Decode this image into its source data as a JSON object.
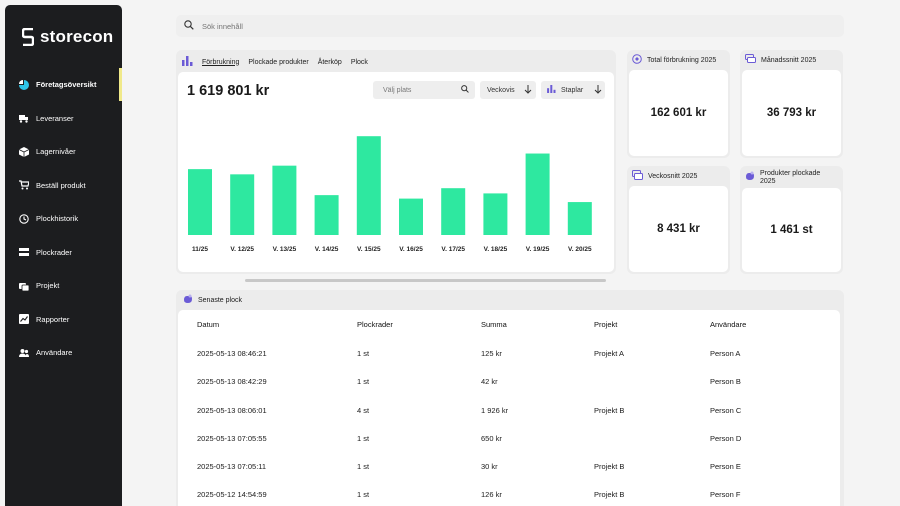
{
  "app": {
    "name": "storecon"
  },
  "sidebar": {
    "items": [
      {
        "label": "Företagsöversikt",
        "icon": "pie-chart-icon",
        "active": true
      },
      {
        "label": "Leveranser",
        "icon": "delivery-icon"
      },
      {
        "label": "Lagernivåer",
        "icon": "box-icon"
      },
      {
        "label": "Beställ produkt",
        "icon": "cart-icon"
      },
      {
        "label": "Plockhistorik",
        "icon": "history-icon"
      },
      {
        "label": "Plockrader",
        "icon": "rows-icon"
      },
      {
        "label": "Projekt",
        "icon": "project-icon"
      },
      {
        "label": "Rapporter",
        "icon": "report-icon"
      },
      {
        "label": "Användare",
        "icon": "users-icon"
      }
    ]
  },
  "search": {
    "placeholder": "Sök innehåll"
  },
  "chart_panel": {
    "tabs": [
      "Förbrukning",
      "Plockade produkter",
      "Återköp",
      "Plock"
    ],
    "total": "1 619 801 kr",
    "place_placeholder": "Välj plats",
    "period_label": "Veckovis",
    "view_label": "Staplar"
  },
  "chart_data": {
    "type": "bar",
    "categories": [
      "11/25",
      "V. 12/25",
      "V. 13/25",
      "V. 14/25",
      "V. 15/25",
      "V. 16/25",
      "V. 17/25",
      "V. 18/25",
      "V. 19/25",
      "V. 20/25"
    ],
    "values": [
      38,
      35,
      40,
      23,
      57,
      21,
      27,
      24,
      47,
      19
    ],
    "ylim": [
      0,
      60
    ],
    "grid": false,
    "color": "#2ee8a0"
  },
  "stats": [
    {
      "title": "Total förbrukning 2025",
      "value": "162 601 kr",
      "icon": "coins-icon"
    },
    {
      "title": "Månadssnitt 2025",
      "value": "36 793 kr",
      "icon": "money-stack-icon"
    },
    {
      "title": "Veckosnitt 2025",
      "value": "8 431 kr",
      "icon": "calendar-money-icon"
    },
    {
      "title": "Produkter plockade 2025",
      "value": "1 461 st",
      "icon": "hand-pick-icon"
    }
  ],
  "recent": {
    "title": "Senaste plock",
    "columns": [
      "Datum",
      "Plockrader",
      "Summa",
      "Projekt",
      "Användare"
    ],
    "rows": [
      [
        "2025-05-13 08:46:21",
        "1 st",
        "125 kr",
        "Projekt A",
        "Person A"
      ],
      [
        "2025-05-13 08:42:29",
        "1 st",
        "42 kr",
        "",
        "Person B"
      ],
      [
        "2025-05-13 08:06:01",
        "4 st",
        "1 926 kr",
        "Projekt B",
        "Person C"
      ],
      [
        "2025-05-13 07:05:55",
        "1 st",
        "650 kr",
        "",
        "Person D"
      ],
      [
        "2025-05-13 07:05:11",
        "1 st",
        "30 kr",
        "Projekt B",
        "Person E"
      ],
      [
        "2025-05-12 14:54:59",
        "1 st",
        "126 kr",
        "Projekt B",
        "Person F"
      ]
    ]
  }
}
